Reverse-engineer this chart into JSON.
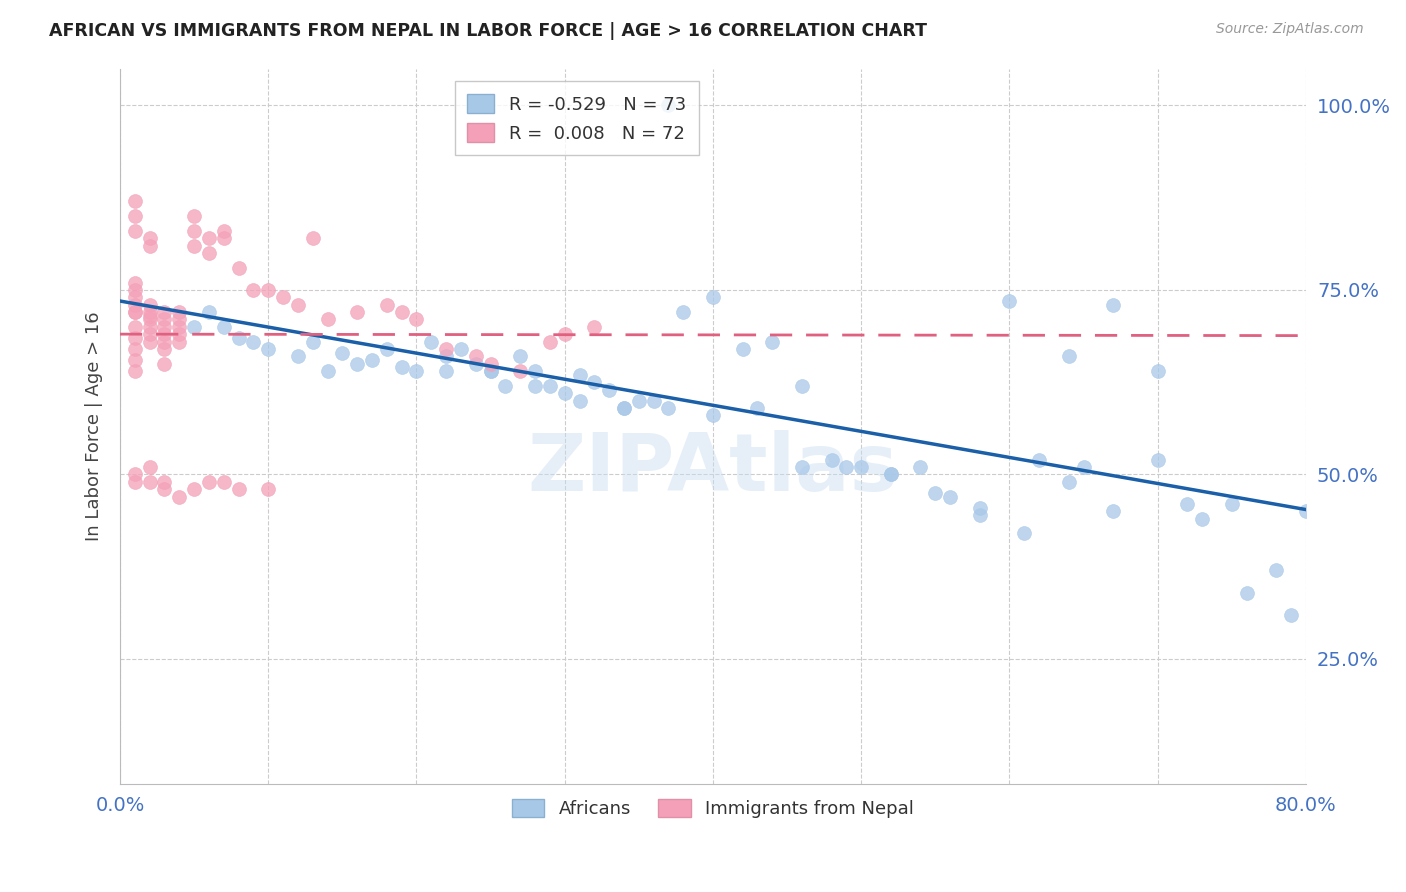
{
  "title": "AFRICAN VS IMMIGRANTS FROM NEPAL IN LABOR FORCE | AGE > 16 CORRELATION CHART",
  "source": "Source: ZipAtlas.com",
  "ylabel": "In Labor Force | Age > 16",
  "xlim": [
    0.0,
    0.8
  ],
  "ylim": [
    0.08,
    1.05
  ],
  "legend1_r": "-0.529",
  "legend1_n": "73",
  "legend2_r": "0.008",
  "legend2_n": "72",
  "blue_color": "#a8c8e8",
  "pink_color": "#f4a0b8",
  "blue_line_color": "#1a5fa8",
  "pink_line_color": "#e06080",
  "grid_color": "#cccccc",
  "title_color": "#222222",
  "tick_color": "#4472c4",
  "watermark": "ZIPAtlas",
  "blue_x": [
    0.37,
    0.05,
    0.08,
    0.1,
    0.13,
    0.15,
    0.17,
    0.18,
    0.2,
    0.21,
    0.22,
    0.23,
    0.24,
    0.25,
    0.26,
    0.27,
    0.28,
    0.29,
    0.3,
    0.31,
    0.32,
    0.33,
    0.35,
    0.06,
    0.07,
    0.09,
    0.12,
    0.14,
    0.16,
    0.19,
    0.34,
    0.36,
    0.38,
    0.4,
    0.42,
    0.44,
    0.46,
    0.48,
    0.5,
    0.52,
    0.54,
    0.56,
    0.58,
    0.6,
    0.62,
    0.64,
    0.65,
    0.67,
    0.7,
    0.72,
    0.75,
    0.22,
    0.25,
    0.28,
    0.31,
    0.34,
    0.37,
    0.4,
    0.43,
    0.46,
    0.49,
    0.52,
    0.55,
    0.58,
    0.61,
    0.64,
    0.67,
    0.7,
    0.73,
    0.76,
    0.78,
    0.79,
    0.8
  ],
  "blue_y": [
    1.0,
    0.7,
    0.685,
    0.67,
    0.68,
    0.665,
    0.655,
    0.67,
    0.64,
    0.68,
    0.66,
    0.67,
    0.65,
    0.64,
    0.62,
    0.66,
    0.64,
    0.62,
    0.61,
    0.635,
    0.625,
    0.615,
    0.6,
    0.72,
    0.7,
    0.68,
    0.66,
    0.64,
    0.65,
    0.645,
    0.59,
    0.6,
    0.72,
    0.74,
    0.67,
    0.68,
    0.62,
    0.52,
    0.51,
    0.5,
    0.51,
    0.47,
    0.445,
    0.735,
    0.52,
    0.66,
    0.51,
    0.73,
    0.52,
    0.46,
    0.46,
    0.64,
    0.64,
    0.62,
    0.6,
    0.59,
    0.59,
    0.58,
    0.59,
    0.51,
    0.51,
    0.5,
    0.475,
    0.455,
    0.42,
    0.49,
    0.45,
    0.64,
    0.44,
    0.34,
    0.37,
    0.31,
    0.45
  ],
  "pink_x": [
    0.01,
    0.01,
    0.01,
    0.01,
    0.01,
    0.01,
    0.01,
    0.01,
    0.01,
    0.01,
    0.01,
    0.01,
    0.01,
    0.01,
    0.02,
    0.02,
    0.02,
    0.02,
    0.02,
    0.02,
    0.02,
    0.02,
    0.02,
    0.03,
    0.03,
    0.03,
    0.03,
    0.03,
    0.03,
    0.03,
    0.04,
    0.04,
    0.04,
    0.04,
    0.04,
    0.05,
    0.05,
    0.05,
    0.06,
    0.06,
    0.07,
    0.07,
    0.08,
    0.09,
    0.1,
    0.11,
    0.12,
    0.13,
    0.14,
    0.16,
    0.18,
    0.19,
    0.2,
    0.22,
    0.24,
    0.25,
    0.27,
    0.29,
    0.3,
    0.32,
    0.01,
    0.01,
    0.02,
    0.02,
    0.03,
    0.03,
    0.04,
    0.05,
    0.06,
    0.07,
    0.08,
    0.1
  ],
  "pink_y": [
    0.72,
    0.7,
    0.685,
    0.67,
    0.655,
    0.64,
    0.76,
    0.75,
    0.74,
    0.73,
    0.72,
    0.83,
    0.85,
    0.87,
    0.71,
    0.7,
    0.69,
    0.68,
    0.72,
    0.73,
    0.81,
    0.82,
    0.715,
    0.71,
    0.7,
    0.69,
    0.68,
    0.67,
    0.65,
    0.72,
    0.72,
    0.71,
    0.7,
    0.69,
    0.68,
    0.81,
    0.83,
    0.85,
    0.8,
    0.82,
    0.82,
    0.83,
    0.78,
    0.75,
    0.75,
    0.74,
    0.73,
    0.82,
    0.71,
    0.72,
    0.73,
    0.72,
    0.71,
    0.67,
    0.66,
    0.65,
    0.64,
    0.68,
    0.69,
    0.7,
    0.49,
    0.5,
    0.49,
    0.51,
    0.48,
    0.49,
    0.47,
    0.48,
    0.49,
    0.49,
    0.48,
    0.48
  ]
}
